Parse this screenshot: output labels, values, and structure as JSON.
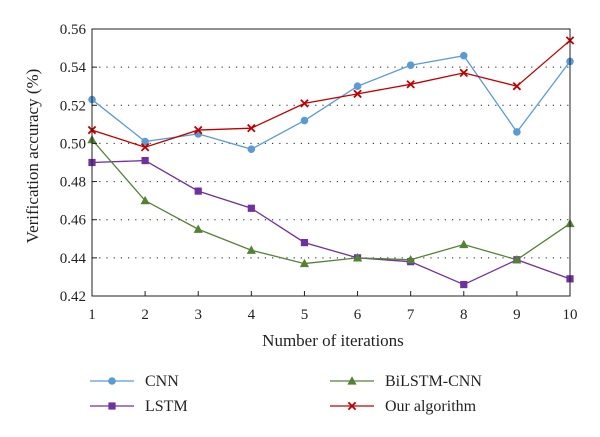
{
  "chart_data": {
    "type": "line",
    "title": "",
    "xlabel": "Number of iterations",
    "ylabel": "Verification accuracy (%)",
    "x": [
      1,
      2,
      3,
      4,
      5,
      6,
      7,
      8,
      9,
      10
    ],
    "xlim": [
      1,
      10
    ],
    "ylim": [
      0.42,
      0.56
    ],
    "x_ticks": [
      "1",
      "2",
      "3",
      "4",
      "5",
      "6",
      "7",
      "8",
      "9",
      "10"
    ],
    "y_ticks": [
      "0.42",
      "0.44",
      "0.46",
      "0.48",
      "0.50",
      "0.52",
      "0.54",
      "0.56"
    ],
    "y_tick_values": [
      0.42,
      0.44,
      0.46,
      0.48,
      0.5,
      0.52,
      0.54,
      0.56
    ],
    "grid": "horizontal dotted",
    "legend_position": "bottom",
    "series": [
      {
        "name": "CNN",
        "color": "#5b9bd5",
        "marker": "circle",
        "values": [
          0.523,
          0.501,
          0.505,
          0.497,
          0.512,
          0.53,
          0.541,
          0.546,
          0.506,
          0.543
        ]
      },
      {
        "name": "LSTM",
        "color": "#7030a0",
        "marker": "square",
        "values": [
          0.49,
          0.491,
          0.475,
          0.466,
          0.448,
          0.44,
          0.438,
          0.426,
          0.439,
          0.429
        ]
      },
      {
        "name": "BiLSTM-CNN",
        "color": "#548235",
        "marker": "triangle",
        "values": [
          0.502,
          0.47,
          0.455,
          0.444,
          0.437,
          0.44,
          0.439,
          0.447,
          0.439,
          0.458
        ]
      },
      {
        "name": "Our algorithm",
        "color": "#c00000",
        "marker": "cross",
        "values": [
          0.507,
          0.498,
          0.507,
          0.508,
          0.521,
          0.526,
          0.531,
          0.537,
          0.53,
          0.554
        ]
      }
    ]
  }
}
